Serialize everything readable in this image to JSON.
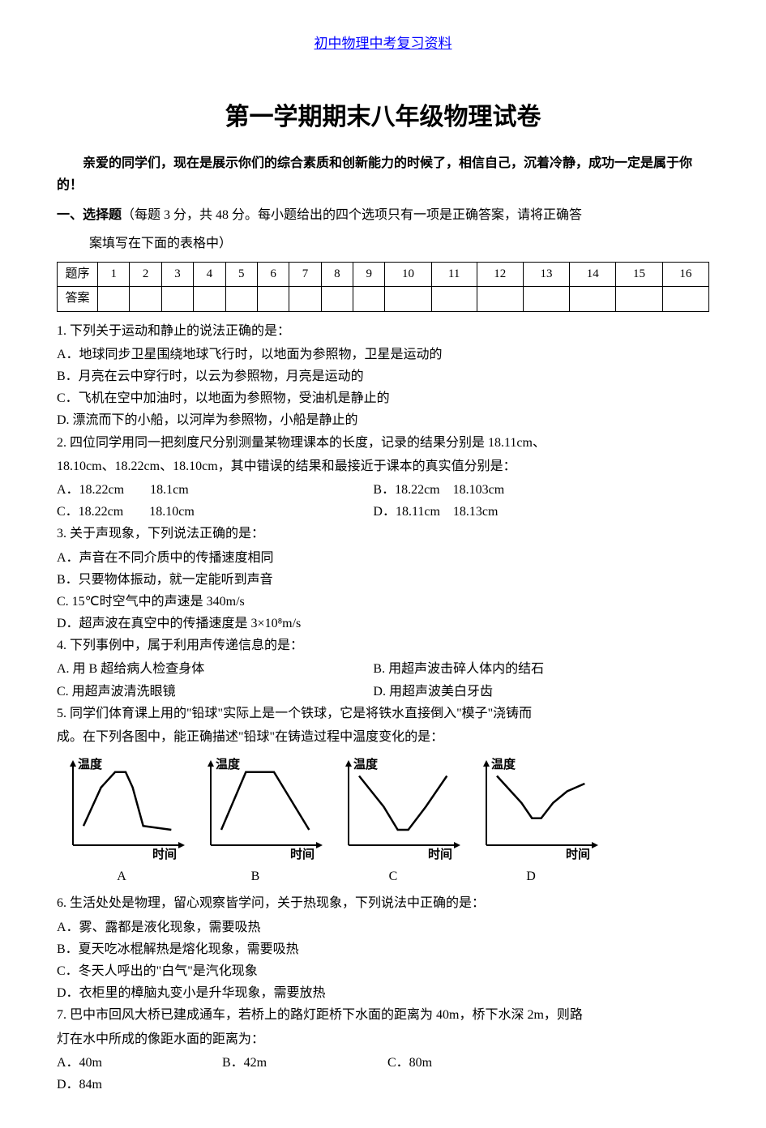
{
  "header": {
    "link_text": "初中物理中考复习资料",
    "link_color": "#0000ff"
  },
  "title": "第一学期期末八年级物理试卷",
  "intro": "亲爱的同学们，现在是展示你们的综合素质和创新能力的时候了，相信自己，沉着冷静，成功一定是属于你的！",
  "section1": {
    "label": "一、选择题",
    "desc": "（每题 3 分，共 48 分。每小题给出的四个选项只有一项是正确答案，请将正确答",
    "desc2": "案填写在下面的表格中）"
  },
  "answer_table": {
    "row1_label": "题序",
    "row2_label": "答案",
    "cols": [
      "1",
      "2",
      "3",
      "4",
      "5",
      "6",
      "7",
      "8",
      "9",
      "10",
      "11",
      "12",
      "13",
      "14",
      "15",
      "16"
    ]
  },
  "q1": {
    "stem": "1. 下列关于运动和静止的说法正确的是：",
    "A": "A．地球同步卫星围绕地球飞行时，以地面为参照物，卫星是运动的",
    "B": "B．月亮在云中穿行时，以云为参照物，月亮是运动的",
    "C": "C．飞机在空中加油时，以地面为参照物，受油机是静止的",
    "D": "D. 漂流而下的小船，以河岸为参照物，小船是静止的"
  },
  "q2": {
    "stem1": "2. 四位同学用同一把刻度尺分别测量某物理课本的长度，记录的结果分别是 18.11cm、",
    "stem2": "18.10cm、18.22cm、18.10cm，其中错误的结果和最接近于课本的真实值分别是：",
    "A": "A．18.22cm　　18.1cm",
    "B": "B．18.22cm　18.103cm",
    "C": "C．18.22cm　　18.10cm",
    "D": "D．18.11cm　18.13cm"
  },
  "q3": {
    "stem": "3. 关于声现象，下列说法正确的是：",
    "A": "A．声音在不同介质中的传播速度相同",
    "B": "B．只要物体振动，就一定能听到声音",
    "C": "C. 15℃时空气中的声速是 340m/s",
    "D": "D．超声波在真空中的传播速度是 3×10⁸m/s"
  },
  "q4": {
    "stem": "4. 下列事例中，属于利用声传递信息的是：",
    "A": "A. 用 B 超给病人检查身体",
    "B": "B. 用超声波击碎人体内的结石",
    "C": "C. 用超声波清洗眼镜",
    "D": "D. 用超声波美白牙齿"
  },
  "q5": {
    "stem1": "5. 同学们体育课上用的\"铅球\"实际上是一个铁球，它是将铁水直接倒入\"模子\"浇铸而",
    "stem2": "成。在下列各图中，能正确描述\"铅球\"在铸造过程中温度变化的是："
  },
  "charts": {
    "ylabel": "温度",
    "xlabel": "时间",
    "labels": [
      "A",
      "B",
      "C",
      "D"
    ],
    "axis_color": "#000000",
    "line_color": "#000000",
    "width": 160,
    "height": 130,
    "label_fontsize": 15,
    "series": {
      "A": [
        [
          15,
          25
        ],
        [
          40,
          75
        ],
        [
          60,
          95
        ],
        [
          75,
          95
        ],
        [
          85,
          75
        ],
        [
          100,
          25
        ],
        [
          140,
          20
        ]
      ],
      "B": [
        [
          15,
          20
        ],
        [
          50,
          95
        ],
        [
          90,
          95
        ],
        [
          140,
          20
        ]
      ],
      "C": [
        [
          15,
          90
        ],
        [
          50,
          50
        ],
        [
          70,
          20
        ],
        [
          85,
          20
        ],
        [
          110,
          50
        ],
        [
          140,
          90
        ]
      ],
      "D": [
        [
          15,
          90
        ],
        [
          50,
          55
        ],
        [
          65,
          35
        ],
        [
          78,
          35
        ],
        [
          95,
          55
        ],
        [
          115,
          70
        ],
        [
          140,
          80
        ]
      ]
    }
  },
  "q6": {
    "stem": "6. 生活处处是物理，留心观察皆学问，关于热现象，下列说法中正确的是：",
    "A": "A．雾、露都是液化现象，需要吸热",
    "B": "B．夏天吃冰棍解热是熔化现象，需要吸热",
    "C": "C．冬天人呼出的\"白气\"是汽化现象",
    "D": "D．衣柜里的樟脑丸变小是升华现象，需要放热"
  },
  "q7": {
    "stem1": "7. 巴中市回风大桥已建成通车，若桥上的路灯距桥下水面的距离为 40m，桥下水深 2m，则路",
    "stem2": "灯在水中所成的像距水面的距离为：",
    "A": "A．40m",
    "B": "B．42m",
    "C": "C．80m",
    "D": "D．84m"
  }
}
